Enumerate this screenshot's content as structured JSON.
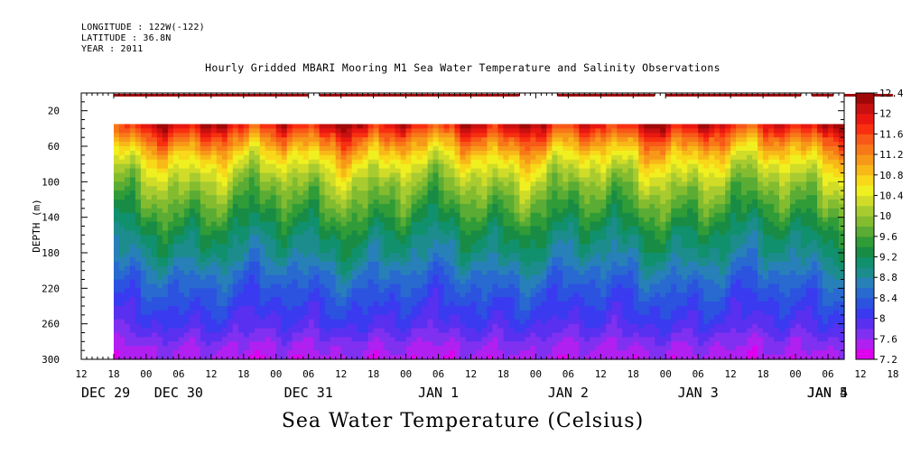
{
  "meta": {
    "longitude": "LONGITUDE : 122W(-122)",
    "latitude": "LATITUDE : 36.8N",
    "year": "YEAR : 2011"
  },
  "chart_data": {
    "type": "heatmap",
    "title": "Hourly Gridded MBARI Mooring M1 Sea Water Temperature and Salinity Observations",
    "xlabel": "Sea Water Temperature (Celsius)",
    "ylabel": "DEPTH (m)",
    "x_range_hours_from_dec29_00": [
      12,
      153
    ],
    "data_start_hour": 18,
    "ylim": [
      300,
      0
    ],
    "y_ticks": [
      20,
      60,
      100,
      140,
      180,
      220,
      260,
      300
    ],
    "hour_tick_labels": [
      "12",
      "18",
      "00",
      "06",
      "12",
      "18",
      "00",
      "06",
      "12",
      "18",
      "00",
      "06",
      "12",
      "18",
      "00",
      "06",
      "12",
      "18",
      "00",
      "06",
      "12",
      "18",
      "00",
      "06",
      "12",
      "18",
      "00",
      "06"
    ],
    "date_labels": [
      {
        "text": "DEC 29",
        "hour": 12
      },
      {
        "text": "DEC 30",
        "hour": 30
      },
      {
        "text": "DEC 31",
        "hour": 54
      },
      {
        "text": "JAN  1",
        "hour": 78
      },
      {
        "text": "JAN  2",
        "hour": 102
      },
      {
        "text": "JAN  3",
        "hour": 126
      },
      {
        "text": "JAN  4",
        "hour": 150
      },
      {
        "text": "JAN  5",
        "hour": 168
      }
    ],
    "colorbar": {
      "levels": [
        7.2,
        7.4,
        7.6,
        7.8,
        8.0,
        8.2,
        8.4,
        8.6,
        8.8,
        9.0,
        9.2,
        9.4,
        9.6,
        9.8,
        10.0,
        10.2,
        10.4,
        10.6,
        10.8,
        11.0,
        11.2,
        11.4,
        11.6,
        11.8,
        12.0,
        12.2,
        12.4
      ],
      "tick_labels": [
        "12.4",
        "12",
        "11.6",
        "11.2",
        "10.8",
        "10.4",
        "10",
        "9.6",
        "9.2",
        "8.8",
        "8.4",
        "8",
        "7.6",
        "7.2"
      ],
      "colors": [
        "#e000f0",
        "#b020f0",
        "#8030f0",
        "#5a30f0",
        "#3a3af0",
        "#2c52e0",
        "#286ad0",
        "#2880b8",
        "#1c8c8c",
        "#10906c",
        "#188c44",
        "#309c38",
        "#5aac34",
        "#84bc30",
        "#a8cc30",
        "#d0dc28",
        "#f0f020",
        "#f8d818",
        "#f8b818",
        "#f89818",
        "#f87818",
        "#f85818",
        "#f83010",
        "#e81810",
        "#c81010",
        "#a00808"
      ]
    },
    "surface_segments_hours": [
      [
        18,
        54
      ],
      [
        56,
        93
      ],
      [
        100,
        118
      ],
      [
        120,
        145
      ],
      [
        147,
        151
      ],
      [
        153,
        162
      ]
    ],
    "surface_temperature_c": 12.2,
    "depth_profile_c": [
      {
        "depth": 35,
        "t": 11.9
      },
      {
        "depth": 50,
        "t": 11.3
      },
      {
        "depth": 65,
        "t": 10.8
      },
      {
        "depth": 80,
        "t": 10.4
      },
      {
        "depth": 100,
        "t": 10.0
      },
      {
        "depth": 120,
        "t": 9.7
      },
      {
        "depth": 140,
        "t": 9.4
      },
      {
        "depth": 160,
        "t": 9.1
      },
      {
        "depth": 180,
        "t": 8.9
      },
      {
        "depth": 200,
        "t": 8.6
      },
      {
        "depth": 220,
        "t": 8.35
      },
      {
        "depth": 240,
        "t": 8.15
      },
      {
        "depth": 260,
        "t": 7.95
      },
      {
        "depth": 280,
        "t": 7.65
      },
      {
        "depth": 300,
        "t": 7.45
      }
    ],
    "upper_data_depth": 35,
    "grid": false,
    "legend": "right"
  }
}
